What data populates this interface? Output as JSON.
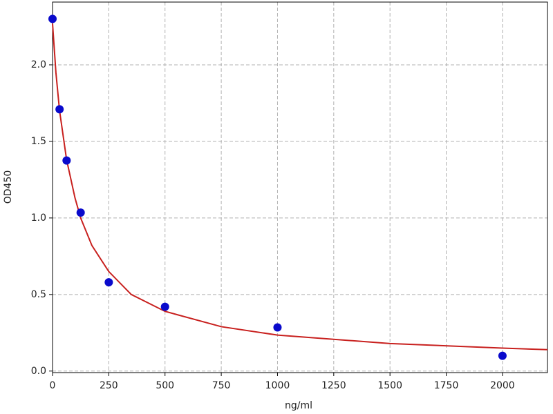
{
  "chart_data": {
    "type": "scatter",
    "xlabel": "ng/ml",
    "ylabel": "OD450",
    "xlim": [
      0,
      2200
    ],
    "ylim": [
      -0.01,
      2.41
    ],
    "xticks": [
      0,
      250,
      500,
      750,
      1000,
      1250,
      1500,
      1750,
      2000
    ],
    "yticks": [
      {
        "value": 0,
        "label": "0.0"
      },
      {
        "value": 0.5,
        "label": "0.5"
      },
      {
        "value": 1,
        "label": "1.0"
      },
      {
        "value": 1.5,
        "label": "1.5"
      },
      {
        "value": 2,
        "label": "2.0"
      }
    ],
    "grid": true,
    "series": [
      {
        "type": "scatter",
        "color": "#0a0acc",
        "x": [
          0,
          31.25,
          62.5,
          125,
          250,
          500,
          1000,
          2000
        ],
        "values": [
          2.3,
          1.71,
          1.375,
          1.035,
          0.58,
          0.42,
          0.285,
          0.1
        ]
      },
      {
        "type": "line",
        "color": "#c8201e",
        "x": [
          0,
          15,
          31.25,
          62.5,
          100,
          125,
          175,
          250,
          350,
          500,
          750,
          1000,
          1500,
          2000,
          2200
        ],
        "values": [
          2.27,
          1.95,
          1.7,
          1.38,
          1.13,
          1.0,
          0.82,
          0.65,
          0.5,
          0.39,
          0.29,
          0.235,
          0.18,
          0.15,
          0.14
        ]
      }
    ]
  }
}
